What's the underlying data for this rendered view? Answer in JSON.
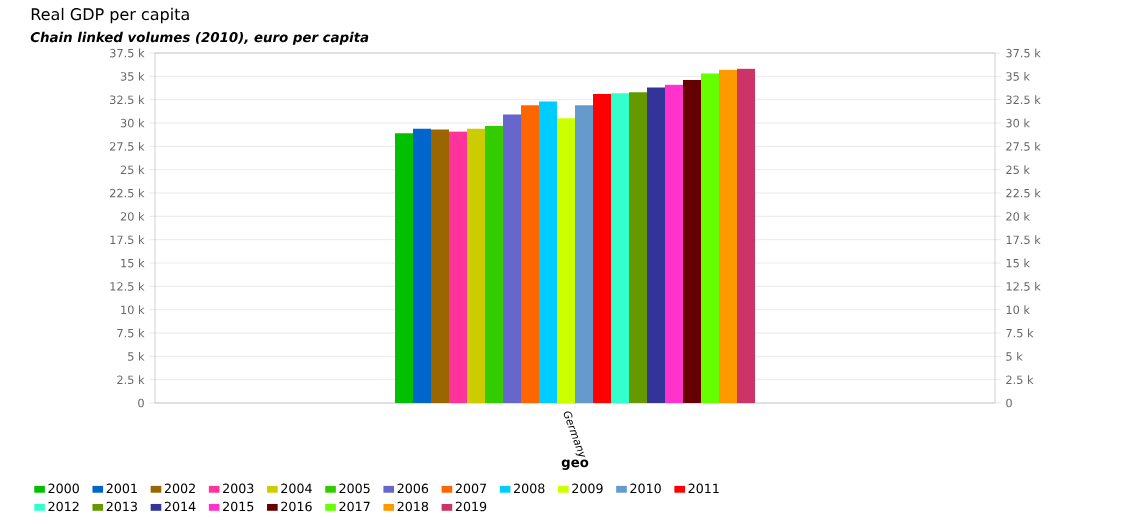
{
  "chart_data": {
    "type": "bar",
    "title": "Real GDP per capita",
    "subtitle": "Chain linked volumes (2010), euro per capita",
    "xlabel": "geo",
    "categories": [
      "Germany"
    ],
    "series": [
      {
        "name": "2000",
        "color": "#00c000",
        "values": [
          28900
        ]
      },
      {
        "name": "2001",
        "color": "#0066cc",
        "values": [
          29400
        ]
      },
      {
        "name": "2002",
        "color": "#996600",
        "values": [
          29300
        ]
      },
      {
        "name": "2003",
        "color": "#ff3399",
        "values": [
          29100
        ]
      },
      {
        "name": "2004",
        "color": "#cccc00",
        "values": [
          29400
        ]
      },
      {
        "name": "2005",
        "color": "#33cc00",
        "values": [
          29700
        ]
      },
      {
        "name": "2006",
        "color": "#6666cc",
        "values": [
          30900
        ]
      },
      {
        "name": "2007",
        "color": "#ff6600",
        "values": [
          31900
        ]
      },
      {
        "name": "2008",
        "color": "#00ccff",
        "values": [
          32300
        ]
      },
      {
        "name": "2009",
        "color": "#ccff00",
        "values": [
          30500
        ]
      },
      {
        "name": "2010",
        "color": "#6699cc",
        "values": [
          31900
        ]
      },
      {
        "name": "2011",
        "color": "#ff0000",
        "values": [
          33100
        ]
      },
      {
        "name": "2012",
        "color": "#33ffcc",
        "values": [
          33200
        ]
      },
      {
        "name": "2013",
        "color": "#669900",
        "values": [
          33300
        ]
      },
      {
        "name": "2014",
        "color": "#333399",
        "values": [
          33800
        ]
      },
      {
        "name": "2015",
        "color": "#ff33cc",
        "values": [
          34100
        ]
      },
      {
        "name": "2016",
        "color": "#660000",
        "values": [
          34600
        ]
      },
      {
        "name": "2017",
        "color": "#66ff00",
        "values": [
          35300
        ]
      },
      {
        "name": "2018",
        "color": "#ff9900",
        "values": [
          35700
        ]
      },
      {
        "name": "2019",
        "color": "#cc3366",
        "values": [
          35800
        ]
      }
    ],
    "ylim": [
      0,
      37500
    ],
    "yticks": [
      {
        "value": 0,
        "label": "0"
      },
      {
        "value": 2500,
        "label": "2.5 k"
      },
      {
        "value": 5000,
        "label": "5 k"
      },
      {
        "value": 7500,
        "label": "7.5 k"
      },
      {
        "value": 10000,
        "label": "10 k"
      },
      {
        "value": 12500,
        "label": "12.5 k"
      },
      {
        "value": 15000,
        "label": "15 k"
      },
      {
        "value": 17500,
        "label": "17.5 k"
      },
      {
        "value": 20000,
        "label": "20 k"
      },
      {
        "value": 22500,
        "label": "22.5 k"
      },
      {
        "value": 25000,
        "label": "25 k"
      },
      {
        "value": 27500,
        "label": "27.5 k"
      },
      {
        "value": 30000,
        "label": "30 k"
      },
      {
        "value": 32500,
        "label": "32.5 k"
      },
      {
        "value": 35000,
        "label": "35 k"
      },
      {
        "value": 37500,
        "label": "37.5 k"
      }
    ],
    "grid": "y",
    "legend": "bottom"
  }
}
